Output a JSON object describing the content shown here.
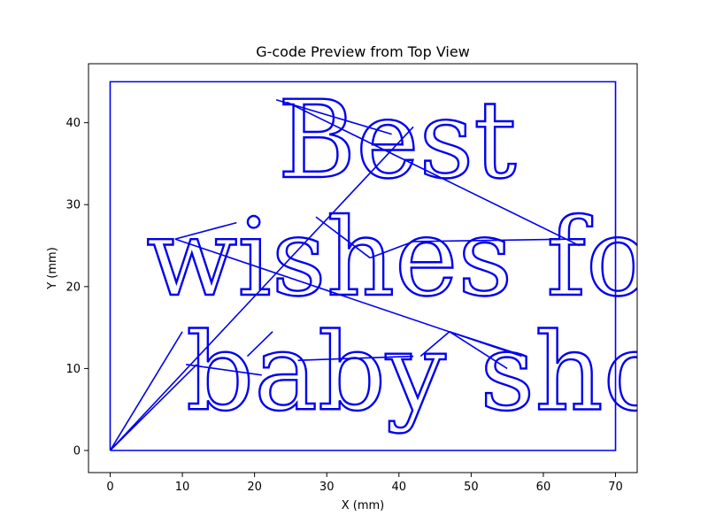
{
  "chart_data": {
    "type": "line",
    "title": "G-code Preview from Top View",
    "xlabel": "X (mm)",
    "ylabel": "Y (mm)",
    "xlim": [
      -3,
      73
    ],
    "ylim": [
      -2.7,
      47.2
    ],
    "xticks": [
      0,
      10,
      20,
      30,
      40,
      50,
      60,
      70
    ],
    "yticks": [
      0,
      10,
      20,
      30,
      40
    ],
    "grid": false,
    "series_color": "#0000ee",
    "text_lines": [
      {
        "text": "Best",
        "x": 23.2,
        "y": 33.4,
        "font_mm": 13.0
      },
      {
        "text": "wishes for",
        "x": 5.0,
        "y": 19.0,
        "font_mm": 13.0
      },
      {
        "text": "baby sho",
        "x": 10.5,
        "y": 5.0,
        "font_mm": 13.0
      }
    ],
    "series": [
      {
        "type": "border",
        "x": [
          0,
          70,
          70,
          0,
          0
        ],
        "y": [
          0,
          0,
          45,
          45,
          0
        ]
      },
      {
        "type": "travel",
        "segments": [
          {
            "x": [
              0,
              10
            ],
            "y": [
              0,
              14.5
            ]
          },
          {
            "x": [
              0,
              12
            ],
            "y": [
              0,
              10.5
            ]
          },
          {
            "x": [
              0,
              42
            ],
            "y": [
              0,
              39.5
            ]
          },
          {
            "x": [
              10.5,
              21
            ],
            "y": [
              10.5,
              9.2
            ]
          },
          {
            "x": [
              19,
              22.5
            ],
            "y": [
              11.5,
              14.5
            ]
          },
          {
            "x": [
              23,
              39
            ],
            "y": [
              42.8,
              38.6
            ]
          },
          {
            "x": [
              24.5,
              65
            ],
            "y": [
              42.5,
              25
            ]
          },
          {
            "x": [
              9,
              17.5
            ],
            "y": [
              25.8,
              27.8
            ]
          },
          {
            "x": [
              9,
              57
            ],
            "y": [
              25.8,
              11.5
            ]
          },
          {
            "x": [
              28.5,
              36
            ],
            "y": [
              28.5,
              23.5
            ]
          },
          {
            "x": [
              36,
              42
            ],
            "y": [
              23.5,
              25.5
            ]
          },
          {
            "x": [
              42,
              64
            ],
            "y": [
              25.5,
              25.8
            ]
          },
          {
            "x": [
              26,
              42
            ],
            "y": [
              11.0,
              11.5
            ]
          },
          {
            "x": [
              43,
              47
            ],
            "y": [
              11.5,
              14.5
            ]
          },
          {
            "x": [
              47,
              57.5
            ],
            "y": [
              14.5,
              11.5
            ]
          },
          {
            "x": [
              47,
              55
            ],
            "y": [
              14.5,
              10.0
            ]
          }
        ]
      }
    ]
  }
}
